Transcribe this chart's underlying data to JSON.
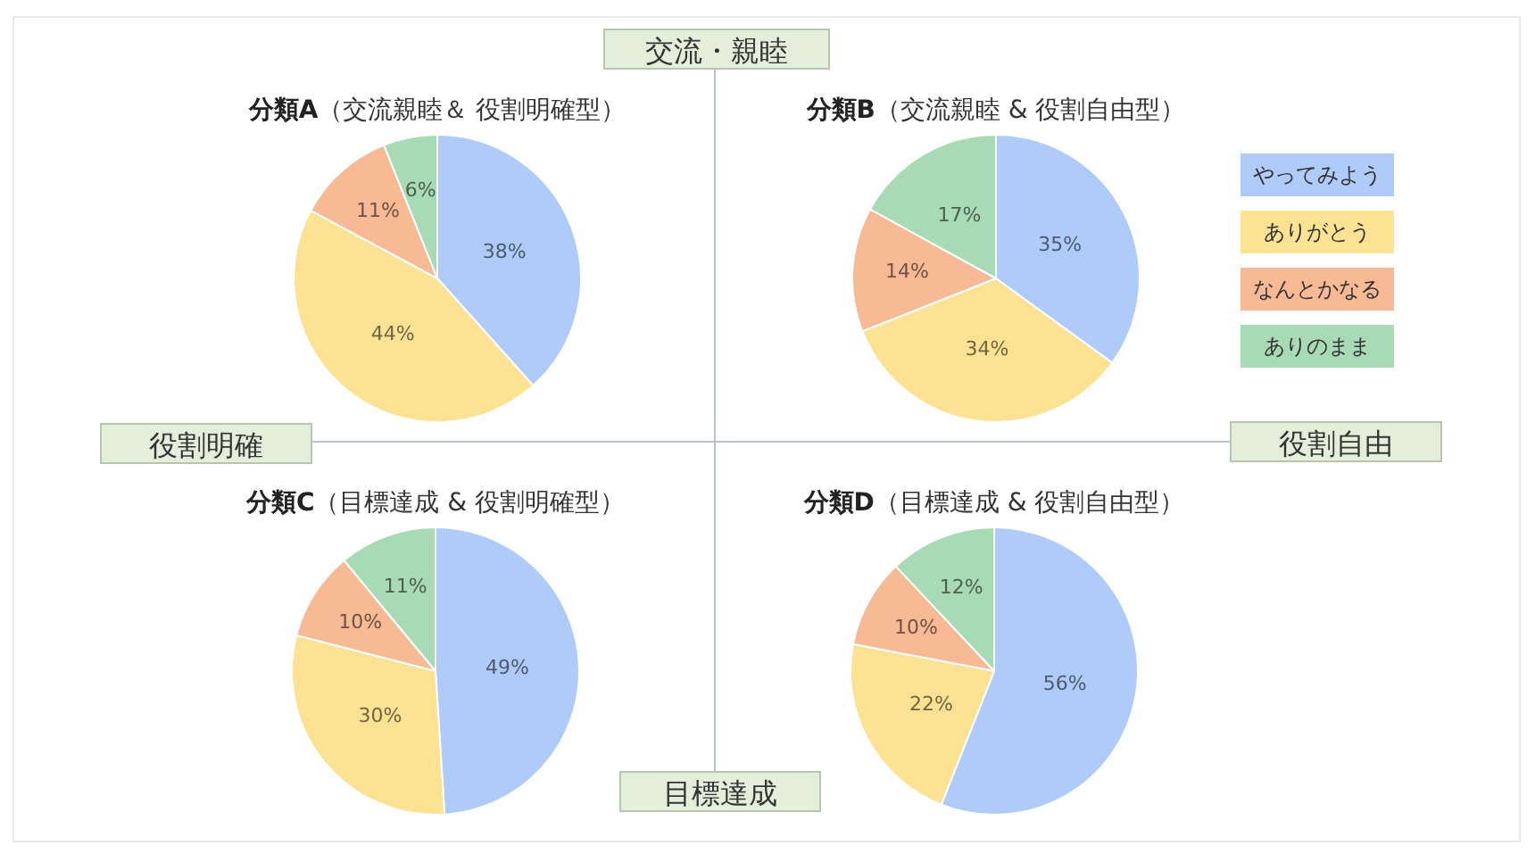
{
  "chart_data": [
    {
      "type": "pie",
      "title": "分類A",
      "subtitle": "（交流親睦＆ 役割明確型）",
      "categories": [
        null,
        null,
        null,
        null
      ],
      "values": [
        38,
        44,
        11,
        6
      ],
      "colors": [
        "#aecbfa",
        "#fde293",
        "#f8b995",
        "#a8dab5"
      ],
      "value_labels": [
        "38%",
        "44%",
        "11%",
        "6%"
      ]
    },
    {
      "type": "pie",
      "title": "分類B",
      "subtitle": "（交流親睦 & 役割自由型）",
      "categories": [
        "やってみよう",
        "ありがとう",
        "なんとかなる",
        "ありのまま"
      ],
      "values": [
        35,
        34,
        14,
        17
      ],
      "colors": [
        "#aecbfa",
        "#fde293",
        "#f8b995",
        "#a8dab5"
      ],
      "value_labels": [
        "35%",
        "34%",
        "14%",
        "17%"
      ],
      "legend": "right"
    },
    {
      "type": "pie",
      "title": "分類C",
      "subtitle": "（目標達成 & 役割明確型）",
      "categories": [
        null,
        null,
        null,
        null
      ],
      "values": [
        49,
        30,
        10,
        11
      ],
      "colors": [
        "#aecbfa",
        "#fde293",
        "#f8b995",
        "#a8dab5"
      ],
      "value_labels": [
        "49%",
        "30%",
        "10%",
        "11%"
      ]
    },
    {
      "type": "pie",
      "title": "分類D",
      "subtitle": "（目標達成 & 役割自由型）",
      "categories": [
        null,
        null,
        null,
        null
      ],
      "values": [
        56,
        22,
        10,
        12
      ],
      "colors": [
        "#aecbfa",
        "#fde293",
        "#f8b995",
        "#a8dab5"
      ],
      "value_labels": [
        "56%",
        "22%",
        "10%",
        "12%"
      ]
    },
    {
      "type": "other",
      "annotations": [
        "交流・親睦",
        "役割明確",
        "役割自由",
        "目標達成"
      ]
    }
  ]
}
